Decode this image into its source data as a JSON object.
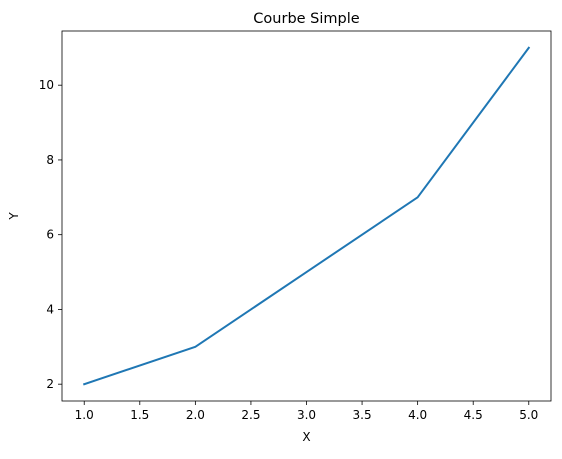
{
  "chart_data": {
    "type": "line",
    "title": "Courbe Simple",
    "xlabel": "X",
    "ylabel": "Y",
    "x": [
      1,
      2,
      3,
      4,
      5
    ],
    "series": [
      {
        "values": [
          2,
          3,
          5,
          7,
          11
        ],
        "color": "#1f77b4"
      }
    ],
    "xlim": [
      0.8,
      5.2
    ],
    "ylim": [
      1.55,
      11.45
    ],
    "xticks": [
      "1.0",
      "1.5",
      "2.0",
      "2.5",
      "3.0",
      "3.5",
      "4.0",
      "4.5",
      "5.0"
    ],
    "yticks": [
      "2",
      "4",
      "6",
      "8",
      "10"
    ],
    "grid": false,
    "legend": false
  }
}
